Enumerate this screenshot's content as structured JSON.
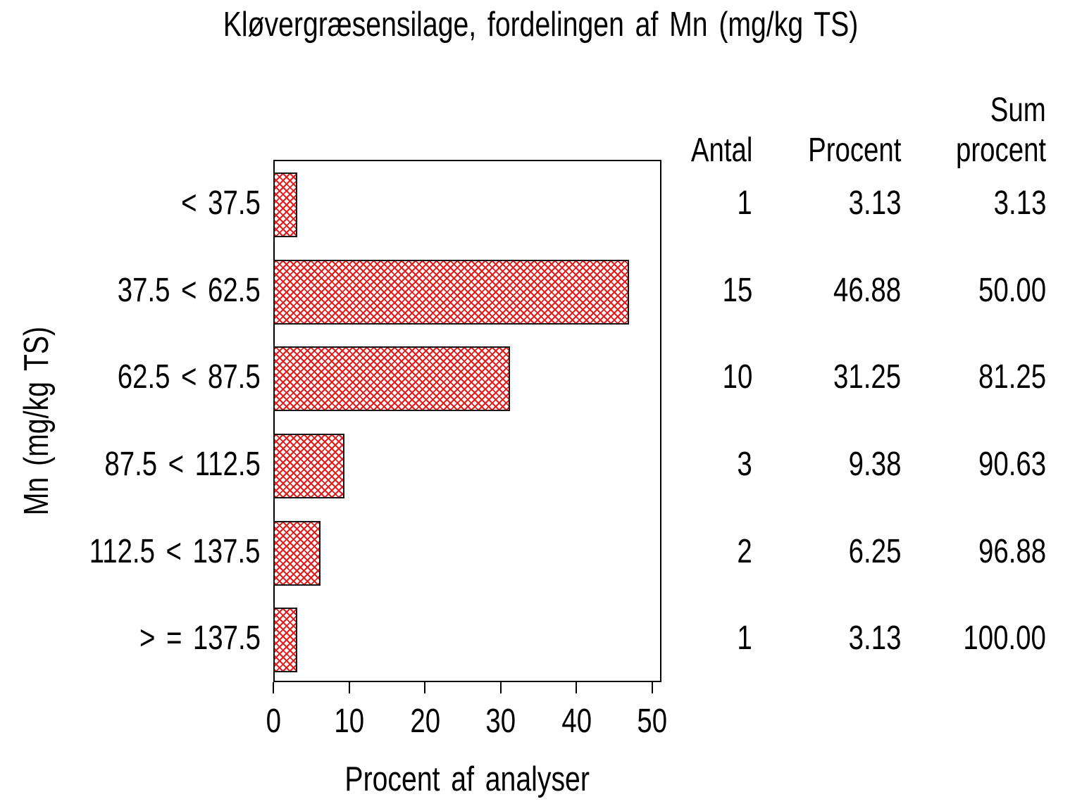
{
  "title": "Kløvergræsensilage, fordelingen af Mn (mg/kg TS)",
  "chart_data": {
    "type": "bar",
    "orientation": "horizontal",
    "title": "Kløvergræsensilage, fordelingen af Mn (mg/kg TS)",
    "categories": [
      "< 37.5",
      "37.5 < 62.5",
      "62.5 < 87.5",
      "87.5 < 112.5",
      "112.5 < 137.5",
      "> = 137.5"
    ],
    "values": [
      3.13,
      46.88,
      31.25,
      9.38,
      6.25,
      3.13
    ],
    "counts": [
      1,
      15,
      10,
      3,
      2,
      1
    ],
    "cum_percent": [
      3.13,
      50.0,
      81.25,
      90.63,
      96.88,
      100.0
    ],
    "xlabel": "Procent af analyser",
    "ylabel": "Mn (mg/kg TS)",
    "xtick_labels": [
      "0",
      "10",
      "20",
      "30",
      "40",
      "50"
    ],
    "xtick_values": [
      0,
      10,
      20,
      30,
      40,
      50
    ],
    "xlim": [
      0,
      51.2
    ],
    "grid": false,
    "legend": "none",
    "bar_fill": "#ffffff",
    "bar_hatch_color": "#e31b1b",
    "bar_hatch_pattern": "diagonal-crosshatch",
    "bar_border_color": "#161616",
    "frame_color": "#000000"
  },
  "table": {
    "headers": [
      {
        "line1": "",
        "line2": "Antal"
      },
      {
        "line1": "",
        "line2": "Procent"
      },
      {
        "line1": "Sum",
        "line2": "procent"
      }
    ],
    "rows": [
      [
        "1",
        "3.13",
        "3.13"
      ],
      [
        "15",
        "46.88",
        "50.00"
      ],
      [
        "10",
        "31.25",
        "81.25"
      ],
      [
        "3",
        "9.38",
        "90.63"
      ],
      [
        "2",
        "6.25",
        "96.88"
      ],
      [
        "1",
        "3.13",
        "100.00"
      ]
    ]
  }
}
